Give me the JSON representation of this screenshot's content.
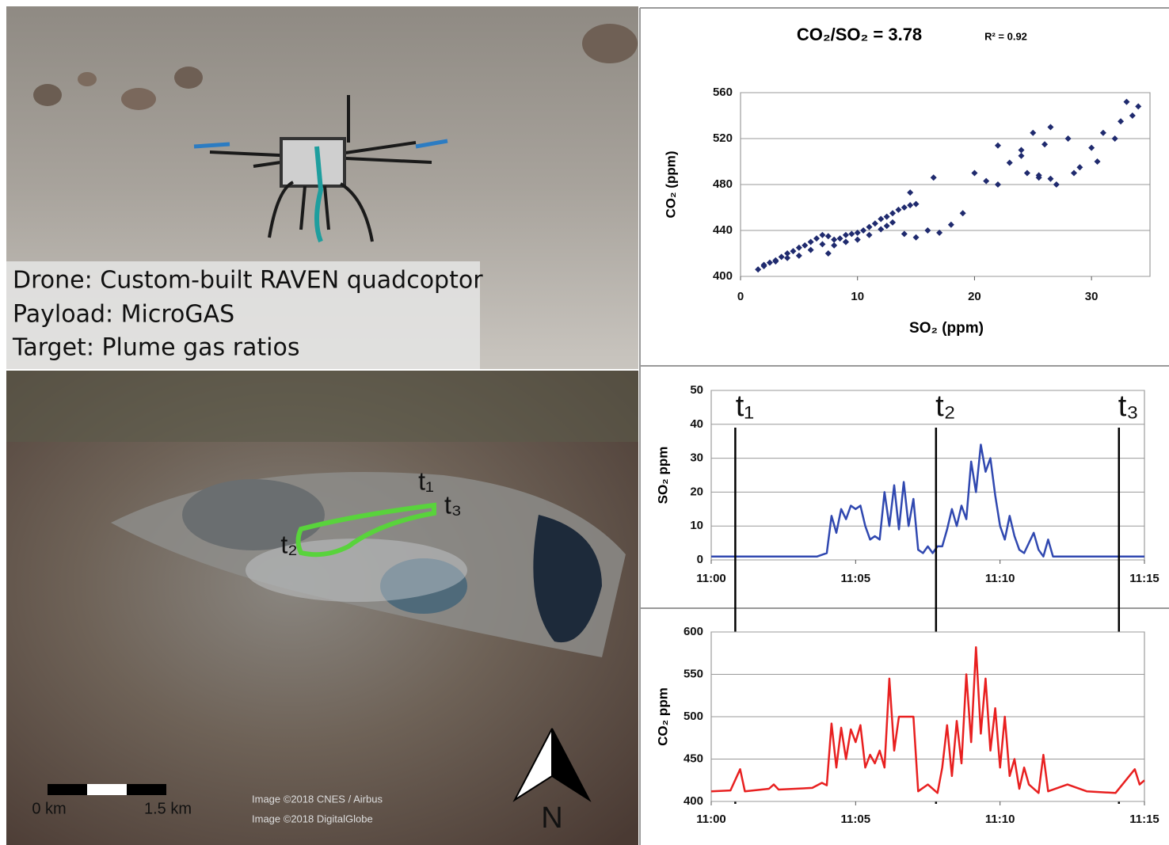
{
  "photo": {
    "caption": [
      "Drone: Custom-built RAVEN quadcoptor",
      "Payload: MicroGAS",
      "Target: Plume gas ratios"
    ]
  },
  "map": {
    "labels": [
      "t₁",
      "t₂",
      "t₃"
    ],
    "scale": [
      "0 km",
      "1.5 km"
    ],
    "credits": [
      "Image ©2018 CNES / Airbus",
      "Image ©2018  DigitalGlobe"
    ],
    "north": "N"
  },
  "chart_data": [
    {
      "type": "scatter",
      "title": "CO₂/SO₂ = 3.78",
      "annotation": "R² = 0.92",
      "x_label": "SO₂ (ppm)",
      "y_label": "CO₂ (ppm)",
      "color": "#1f2a6e",
      "xlim": [
        0,
        35
      ],
      "xticks": [
        0,
        10,
        20,
        30
      ],
      "ylim": [
        400,
        560
      ],
      "yticks": [
        400,
        440,
        480,
        520,
        560
      ],
      "grid": true,
      "x": [
        1.5,
        2,
        2.5,
        3,
        3.5,
        4,
        4.5,
        5,
        5.5,
        6,
        6.5,
        7,
        7.5,
        8,
        8.5,
        9,
        9.5,
        10,
        10.5,
        11,
        11.5,
        12,
        12.5,
        13,
        13.5,
        14,
        14.5,
        15,
        2,
        3,
        4,
        5,
        6,
        7,
        8,
        9,
        10,
        11,
        12,
        13,
        14,
        15,
        16,
        17,
        16.5,
        18,
        19,
        20,
        21,
        22,
        23,
        24,
        24.5,
        25,
        25.5,
        26,
        26.5,
        27,
        28,
        29,
        30,
        30.5,
        31,
        32,
        32.5,
        33,
        33.5,
        34,
        7.5,
        9,
        12.5,
        14.5,
        22,
        26.5,
        28.5,
        24,
        25.5
      ],
      "values": [
        406,
        409,
        412,
        414,
        417,
        420,
        422,
        425,
        427,
        430,
        433,
        436,
        435,
        432,
        433,
        436,
        437,
        438,
        440,
        443,
        446,
        450,
        452,
        455,
        458,
        460,
        462,
        463,
        410,
        413,
        416,
        418,
        423,
        428,
        427,
        430,
        432,
        436,
        441,
        447,
        437,
        434,
        440,
        438,
        486,
        445,
        455,
        490,
        483,
        480,
        499,
        510,
        490,
        525,
        488,
        515,
        485,
        480,
        520,
        495,
        512,
        500,
        525,
        520,
        535,
        552,
        540,
        548,
        420,
        430,
        444,
        473,
        514,
        530,
        490,
        505,
        486
      ]
    },
    {
      "type": "line",
      "y_label": "SO₂ ppm",
      "color": "#3048b0",
      "xlim": [
        "11:00",
        "11:15"
      ],
      "xticks": [
        "11:00",
        "11:05",
        "11:10",
        "11:15"
      ],
      "ylim": [
        0,
        50
      ],
      "yticks": [
        0,
        10,
        20,
        30,
        40,
        50
      ],
      "grid": true,
      "markers": [
        {
          "label": "t₁",
          "x": "11:00:50"
        },
        {
          "label": "t₂",
          "x": "11:07:47"
        },
        {
          "label": "t₃",
          "x": "11:14:07"
        }
      ],
      "x": [
        "11:00:00",
        "11:03:40",
        "11:04:00",
        "11:04:10",
        "11:04:20",
        "11:04:30",
        "11:04:40",
        "11:04:50",
        "11:05:00",
        "11:05:10",
        "11:05:20",
        "11:05:30",
        "11:05:40",
        "11:05:50",
        "11:06:00",
        "11:06:10",
        "11:06:20",
        "11:06:30",
        "11:06:40",
        "11:06:50",
        "11:07:00",
        "11:07:10",
        "11:07:20",
        "11:07:30",
        "11:07:40",
        "11:07:50",
        "11:08:00",
        "11:08:10",
        "11:08:20",
        "11:08:30",
        "11:08:40",
        "11:08:50",
        "11:09:00",
        "11:09:10",
        "11:09:20",
        "11:09:30",
        "11:09:40",
        "11:09:50",
        "11:10:00",
        "11:10:10",
        "11:10:20",
        "11:10:30",
        "11:10:40",
        "11:10:50",
        "11:11:00",
        "11:11:10",
        "11:11:20",
        "11:11:30",
        "11:11:40",
        "11:11:50",
        "11:12:00",
        "11:15:00"
      ],
      "values": [
        1,
        1,
        2,
        13,
        8,
        15,
        12,
        16,
        15,
        16,
        10,
        6,
        7,
        6,
        20,
        10,
        22,
        9,
        23,
        10,
        18,
        3,
        2,
        4,
        2,
        4,
        4,
        9,
        15,
        10,
        16,
        12,
        29,
        20,
        34,
        26,
        30,
        19,
        10,
        6,
        13,
        7,
        3,
        2,
        5,
        8,
        3,
        1,
        6,
        1,
        1,
        1
      ]
    },
    {
      "type": "line",
      "y_label": "CO₂ ppm",
      "color": "#e82020",
      "xlim": [
        "11:00",
        "11:15"
      ],
      "xticks": [
        "11:00",
        "11:05",
        "11:10",
        "11:15"
      ],
      "ylim": [
        400,
        600
      ],
      "yticks": [
        400,
        450,
        500,
        550,
        600
      ],
      "grid": true,
      "x": [
        "11:00:00",
        "11:00:40",
        "11:01:00",
        "11:01:10",
        "11:02:00",
        "11:02:10",
        "11:02:20",
        "11:03:30",
        "11:03:50",
        "11:04:00",
        "11:04:10",
        "11:04:20",
        "11:04:30",
        "11:04:40",
        "11:04:50",
        "11:05:00",
        "11:05:10",
        "11:05:20",
        "11:05:30",
        "11:05:40",
        "11:05:50",
        "11:06:00",
        "11:06:10",
        "11:06:20",
        "11:06:30",
        "11:07:00",
        "11:07:10",
        "11:07:30",
        "11:07:50",
        "11:08:00",
        "11:08:10",
        "11:08:20",
        "11:08:30",
        "11:08:40",
        "11:08:50",
        "11:09:00",
        "11:09:10",
        "11:09:20",
        "11:09:30",
        "11:09:40",
        "11:09:50",
        "11:10:00",
        "11:10:10",
        "11:10:20",
        "11:10:30",
        "11:10:40",
        "11:10:50",
        "11:11:00",
        "11:11:20",
        "11:11:30",
        "11:11:40",
        "11:12:20",
        "11:13:00",
        "11:14:00",
        "11:14:40",
        "11:14:50",
        "11:15:00"
      ],
      "values": [
        412,
        413,
        438,
        412,
        415,
        420,
        414,
        416,
        422,
        419,
        492,
        440,
        487,
        450,
        485,
        470,
        490,
        440,
        455,
        445,
        460,
        440,
        545,
        460,
        500,
        500,
        412,
        420,
        410,
        440,
        490,
        430,
        495,
        445,
        550,
        470,
        582,
        480,
        545,
        460,
        510,
        440,
        500,
        430,
        450,
        415,
        440,
        420,
        410,
        455,
        412,
        420,
        412,
        410,
        438,
        420,
        425
      ]
    }
  ]
}
